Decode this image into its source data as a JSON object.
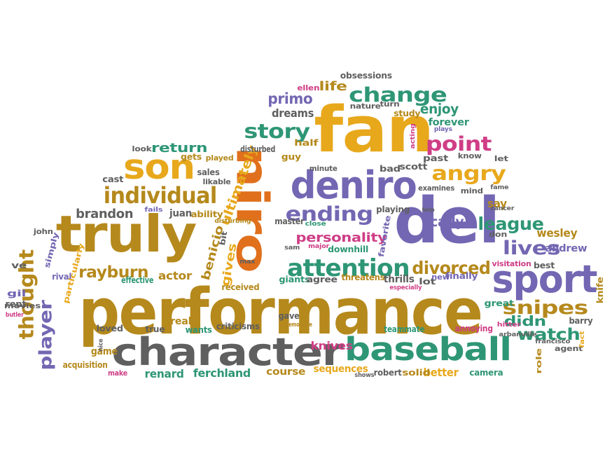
{
  "palette": {
    "olive": "#b5891c",
    "gold": "#e8a81c",
    "purple": "#7367b3",
    "teal": "#2e9675",
    "grey": "#5f5f5f",
    "pink": "#cf3e86",
    "orange": "#e0701c"
  },
  "words": [
    {
      "text": "performance",
      "color": "olive"
    },
    {
      "text": "character",
      "color": "grey"
    },
    {
      "text": "baseball",
      "color": "teal"
    },
    {
      "text": "fan",
      "color": "gold"
    },
    {
      "text": "del",
      "color": "purple"
    },
    {
      "text": "truly",
      "color": "olive"
    },
    {
      "text": "niro",
      "color": "orange"
    },
    {
      "text": "deniro",
      "color": "purple"
    },
    {
      "text": "sport",
      "color": "purple"
    },
    {
      "text": "son",
      "color": "gold"
    },
    {
      "text": "attention",
      "color": "teal"
    },
    {
      "text": "divorced",
      "color": "olive"
    },
    {
      "text": "thought",
      "color": "olive"
    },
    {
      "text": "individual",
      "color": "olive"
    },
    {
      "text": "ending",
      "color": "purple"
    },
    {
      "text": "change",
      "color": "teal"
    },
    {
      "text": "angry",
      "color": "gold"
    },
    {
      "text": "story",
      "color": "teal"
    },
    {
      "text": "point",
      "color": "pink"
    },
    {
      "text": "league",
      "color": "teal"
    },
    {
      "text": "lives",
      "color": "purple"
    },
    {
      "text": "snipes",
      "color": "olive"
    },
    {
      "text": "watch",
      "color": "teal"
    },
    {
      "text": "player",
      "color": "purple"
    },
    {
      "text": "rayburn",
      "color": "olive"
    },
    {
      "text": "primo",
      "color": "purple"
    },
    {
      "text": "enjoy",
      "color": "teal"
    },
    {
      "text": "personality",
      "color": "pink"
    },
    {
      "text": "didn",
      "color": "teal"
    },
    {
      "text": "return",
      "color": "teal"
    },
    {
      "text": "brandon",
      "color": "grey"
    },
    {
      "text": "ultimately",
      "color": "gold"
    },
    {
      "text": "benicio",
      "color": "olive"
    },
    {
      "text": "gives",
      "color": "gold"
    },
    {
      "text": "cady",
      "color": "purple"
    },
    {
      "text": "life",
      "color": "olive"
    },
    {
      "text": "wesley",
      "color": "olive"
    },
    {
      "text": "actor",
      "color": "olive"
    },
    {
      "text": "say",
      "color": "olive"
    },
    {
      "text": "andrew",
      "color": "purple"
    },
    {
      "text": "dreams",
      "color": "grey"
    },
    {
      "text": "forever",
      "color": "teal"
    },
    {
      "text": "knives",
      "color": "pink"
    },
    {
      "text": "ferchland",
      "color": "teal"
    },
    {
      "text": "renard",
      "color": "teal"
    },
    {
      "text": "sequences",
      "color": "gold"
    },
    {
      "text": "course",
      "color": "olive"
    },
    {
      "text": "better",
      "color": "gold"
    },
    {
      "text": "thrills",
      "color": "grey"
    },
    {
      "text": "effective",
      "color": "teal"
    },
    {
      "text": "loved",
      "color": "grey"
    },
    {
      "text": "real",
      "color": "olive"
    },
    {
      "text": "game",
      "color": "olive"
    },
    {
      "text": "juan",
      "color": "grey"
    },
    {
      "text": "ability",
      "color": "olive"
    },
    {
      "text": "gil",
      "color": "purple"
    },
    {
      "text": "rival",
      "color": "purple"
    },
    {
      "text": "ve",
      "color": "grey"
    },
    {
      "text": "rent",
      "color": "grey"
    },
    {
      "text": "movies",
      "color": "grey"
    },
    {
      "text": "particularly",
      "color": "gold"
    },
    {
      "text": "acquisition",
      "color": "olive"
    },
    {
      "text": "make",
      "color": "pink"
    },
    {
      "text": "simply",
      "color": "purple"
    },
    {
      "text": "john",
      "color": "grey"
    },
    {
      "text": "butler",
      "color": "pink"
    },
    {
      "text": "nice",
      "color": "grey"
    },
    {
      "text": "true",
      "color": "grey"
    },
    {
      "text": "wants",
      "color": "teal"
    },
    {
      "text": "criticisms",
      "color": "grey"
    },
    {
      "text": "memorable",
      "color": "olive"
    },
    {
      "text": "teammate",
      "color": "teal"
    },
    {
      "text": "annoying",
      "color": "pink"
    },
    {
      "text": "hitter",
      "color": "pink"
    },
    {
      "text": "barry",
      "color": "grey"
    },
    {
      "text": "agent",
      "color": "grey"
    },
    {
      "text": "role",
      "color": "olive"
    },
    {
      "text": "camera",
      "color": "teal"
    },
    {
      "text": "solid",
      "color": "olive"
    },
    {
      "text": "robert",
      "color": "grey"
    },
    {
      "text": "shows",
      "color": "grey"
    },
    {
      "text": "gave",
      "color": "grey"
    },
    {
      "text": "giants",
      "color": "teal"
    },
    {
      "text": "agree",
      "color": "grey"
    },
    {
      "text": "threatens",
      "color": "olive"
    },
    {
      "text": "lot",
      "color": "grey"
    },
    {
      "text": "especially",
      "color": "pink"
    },
    {
      "text": "finally",
      "color": "purple"
    },
    {
      "text": "new",
      "color": "purple"
    },
    {
      "text": "great",
      "color": "teal"
    },
    {
      "text": "visitation",
      "color": "pink"
    },
    {
      "text": "best",
      "color": "grey"
    },
    {
      "text": "knife",
      "color": "olive"
    },
    {
      "text": "fact",
      "color": "gold"
    },
    {
      "text": "arbanville",
      "color": "grey"
    },
    {
      "text": "francisco",
      "color": "grey"
    },
    {
      "text": "received",
      "color": "olive"
    },
    {
      "text": "max",
      "color": "grey"
    },
    {
      "text": "downhill",
      "color": "teal"
    },
    {
      "text": "favorite",
      "color": "purple"
    },
    {
      "text": "playing",
      "color": "grey"
    },
    {
      "text": "sam",
      "color": "grey"
    },
    {
      "text": "major",
      "color": "pink"
    },
    {
      "text": "close",
      "color": "teal"
    },
    {
      "text": "master",
      "color": "grey"
    },
    {
      "text": "disturbing",
      "color": "olive"
    },
    {
      "text": "bit",
      "color": "grey"
    },
    {
      "text": "fails",
      "color": "purple"
    },
    {
      "text": "sales",
      "color": "grey"
    },
    {
      "text": "likable",
      "color": "grey"
    },
    {
      "text": "gets",
      "color": "olive"
    },
    {
      "text": "played",
      "color": "olive"
    },
    {
      "text": "look",
      "color": "grey"
    },
    {
      "text": "cast",
      "color": "grey"
    },
    {
      "text": "disturbed",
      "color": "grey"
    },
    {
      "text": "guy",
      "color": "olive"
    },
    {
      "text": "half",
      "color": "olive"
    },
    {
      "text": "minute",
      "color": "grey"
    },
    {
      "text": "bad",
      "color": "grey"
    },
    {
      "text": "scott",
      "color": "grey"
    },
    {
      "text": "examines",
      "color": "grey"
    },
    {
      "text": "mind",
      "color": "grey"
    },
    {
      "text": "know",
      "color": "grey"
    },
    {
      "text": "let",
      "color": "grey"
    },
    {
      "text": "past",
      "color": "grey"
    },
    {
      "text": "plays",
      "color": "purple"
    },
    {
      "text": "acting",
      "color": "pink"
    },
    {
      "text": "fame",
      "color": "grey"
    },
    {
      "text": "cancer",
      "color": "grey"
    },
    {
      "text": "don",
      "color": "grey"
    },
    {
      "text": "study",
      "color": "olive"
    },
    {
      "text": "turn",
      "color": "grey"
    },
    {
      "text": "nature",
      "color": "grey"
    },
    {
      "text": "ellen",
      "color": "pink"
    },
    {
      "text": "obsessions",
      "color": "grey"
    },
    {
      "text": "help",
      "color": "grey"
    }
  ]
}
